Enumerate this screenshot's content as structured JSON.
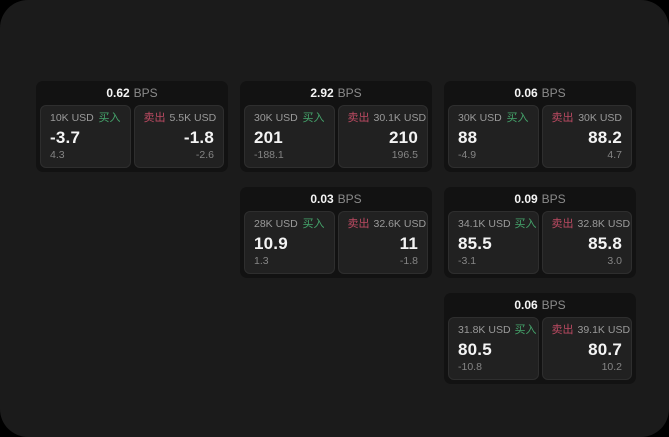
{
  "window": {
    "page_background": "#000000",
    "background": "#1b1b1b"
  },
  "labels": {
    "bps_unit": "BPS",
    "buy": "买入",
    "sell": "卖出"
  },
  "colors": {
    "buy_green": "#45a56c",
    "sell_red": "#bc4a62",
    "card_bg": "#121212",
    "panel_bg": "#212121",
    "panel_border": "#2e2e2e",
    "value_text": "#f4f4f4",
    "muted_text": "#9a9a9a"
  },
  "cards": [
    {
      "bps": "0.62",
      "row": 0,
      "col": 0,
      "buy": {
        "size": "10K USD",
        "value": "-3.7",
        "sub": "4.3"
      },
      "sell": {
        "size": "5.5K USD",
        "value": "-1.8",
        "sub": "-2.6"
      }
    },
    {
      "bps": "2.92",
      "row": 0,
      "col": 1,
      "buy": {
        "size": "30K USD",
        "value": "201",
        "sub": "-188.1"
      },
      "sell": {
        "size": "30.1K USD",
        "value": "210",
        "sub": "196.5"
      }
    },
    {
      "bps": "0.06",
      "row": 0,
      "col": 2,
      "buy": {
        "size": "30K USD",
        "value": "88",
        "sub": "-4.9"
      },
      "sell": {
        "size": "30K USD",
        "value": "88.2",
        "sub": "4.7"
      }
    },
    {
      "bps": "0.03",
      "row": 1,
      "col": 1,
      "buy": {
        "size": "28K USD",
        "value": "10.9",
        "sub": "1.3"
      },
      "sell": {
        "size": "32.6K USD",
        "value": "11",
        "sub": "-1.8"
      }
    },
    {
      "bps": "0.09",
      "row": 1,
      "col": 2,
      "buy": {
        "size": "34.1K USD",
        "value": "85.5",
        "sub": "-3.1"
      },
      "sell": {
        "size": "32.8K USD",
        "value": "85.8",
        "sub": "3.0"
      }
    },
    {
      "bps": "0.06",
      "row": 2,
      "col": 2,
      "buy": {
        "size": "31.8K USD",
        "value": "80.5",
        "sub": "-10.8"
      },
      "sell": {
        "size": "39.1K USD",
        "value": "80.7",
        "sub": "10.2"
      }
    }
  ]
}
